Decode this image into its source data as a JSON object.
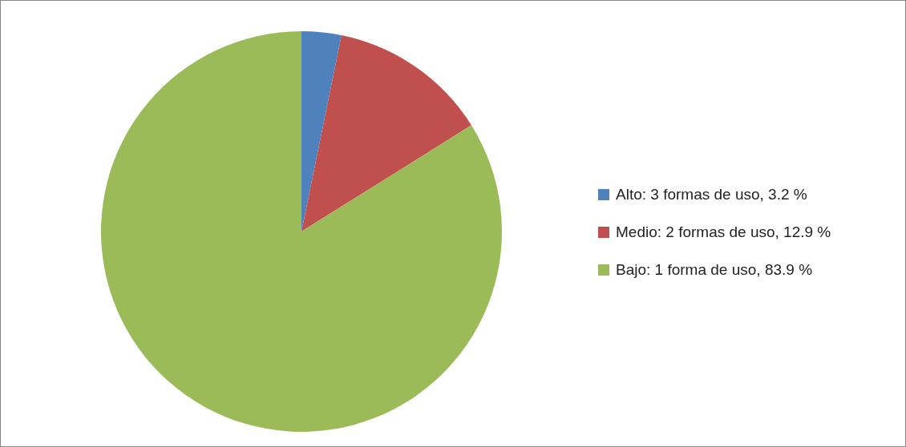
{
  "chart_data": {
    "type": "pie",
    "categories": [
      "Alto: 3 formas de uso, 3.2 %",
      "Medio: 2 formas de uso, 12.9 %",
      "Bajo: 1 forma de uso, 83.9 %"
    ],
    "values": [
      3.2,
      12.9,
      83.9
    ],
    "colors": [
      "#4f81bd",
      "#c0504d",
      "#9bbb59"
    ],
    "legend": "right"
  }
}
